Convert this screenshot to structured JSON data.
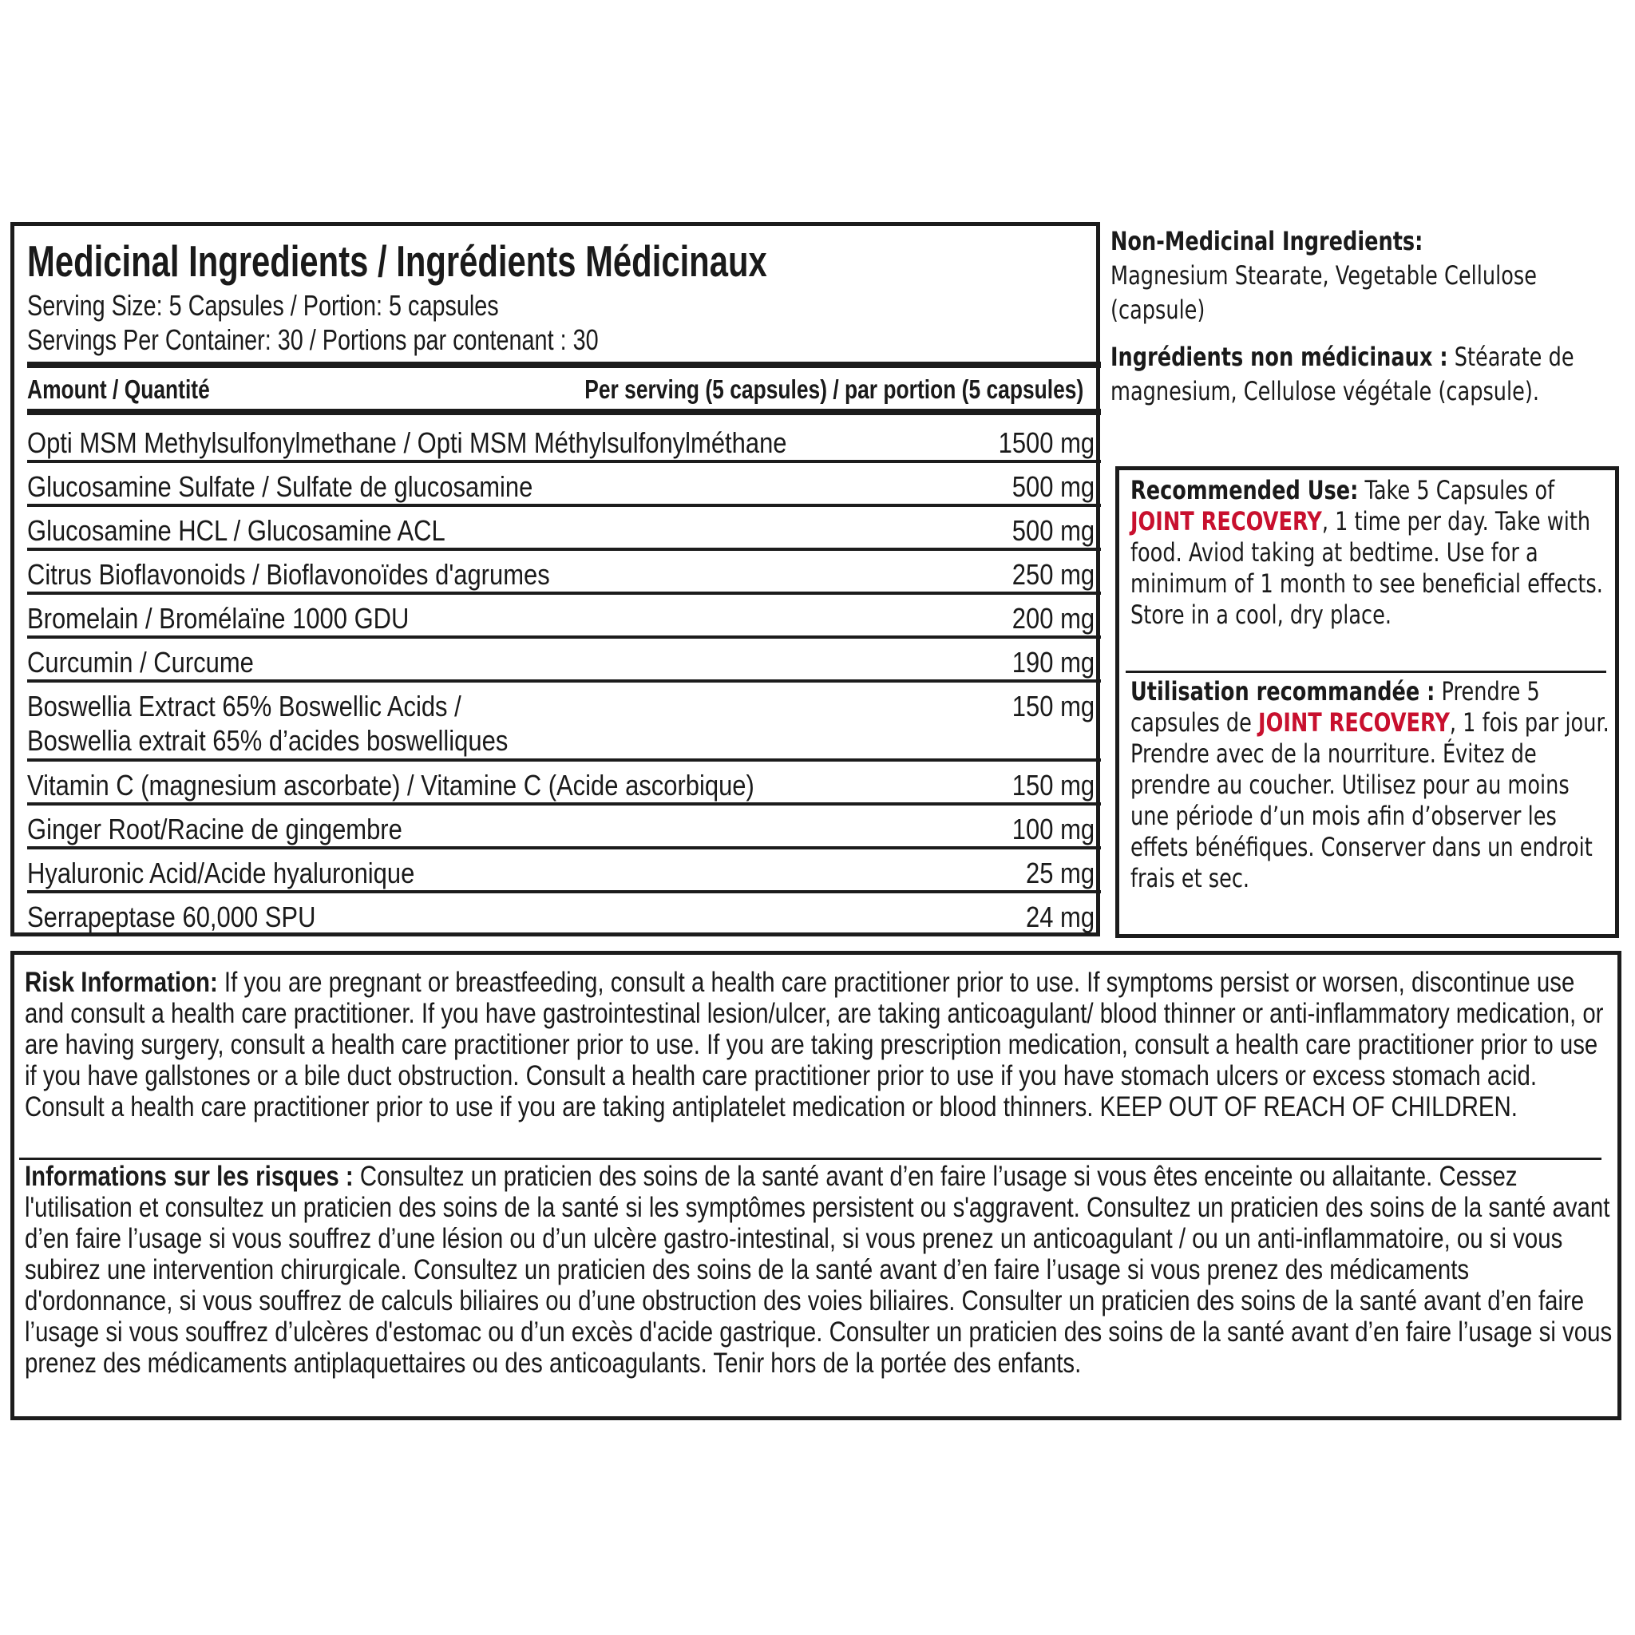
{
  "medicinal": {
    "title": "Medicinal Ingredients / Ingrédients Médicinaux",
    "serving_size": "Serving Size: 5 Capsules / Portion: 5 capsules",
    "servings_per_container": "Servings Per Container: 30 / Portions par contenant : 30",
    "header_left": "Amount / Quantité",
    "header_right": "Per serving (5 capsules) / par portion (5 capsules)",
    "rows": [
      {
        "name": "Opti MSM Methylsulfonylmethane / Opti MSM Méthylsulfonylméthane",
        "amount": "1500 mg"
      },
      {
        "name": "Glucosamine Sulfate / Sulfate de glucosamine",
        "amount": "500 mg"
      },
      {
        "name": "Glucosamine HCL / Glucosamine ACL",
        "amount": "500 mg"
      },
      {
        "name": "Citrus Bioflavonoids / Bioflavonoïdes d'agrumes",
        "amount": "250 mg"
      },
      {
        "name": "Bromelain / Bromélaïne 1000 GDU",
        "amount": "200 mg"
      },
      {
        "name": "Curcumin / Curcume",
        "amount": "190 mg"
      },
      {
        "name": "Boswellia Extract 65% Boswellic Acids /",
        "name2": "Boswellia extrait 65% d’acides boswelliques",
        "amount": "150 mg"
      },
      {
        "name": "Vitamin C (magnesium ascorbate) / Vitamine C (Acide ascorbique)",
        "amount": "150 mg"
      },
      {
        "name": "Ginger Root/Racine de gingembre",
        "amount": "100 mg"
      },
      {
        "name": "Hyaluronic Acid/Acide hyaluronique",
        "amount": "25 mg"
      },
      {
        "name": "Serrapeptase 60,000 SPU",
        "amount": "24 mg"
      }
    ]
  },
  "non_medicinal": {
    "en_heading": "Non-Medicinal Ingredients:",
    "en_text": "Magnesium Stearate, Vegetable Cellulose (capsule)",
    "fr_heading": "Ingrédients non médicinaux :",
    "fr_text": " Stéarate de magnesium, Cellulose végétale (capsule)."
  },
  "recommended_use": {
    "en_heading": "Recommended Use:",
    "en_pre": " Take 5 Capsules of ",
    "brand": "JOINT RECOVERY",
    "en_post": ", 1 time per day. Take with food. Aviod taking at bedtime. Use for a minimum of 1 month to see beneficial effects. Store in a cool, dry place.",
    "fr_heading": "Utilisation recommandée :",
    "fr_pre": " Prendre 5 capsules de ",
    "fr_post": ", 1 fois par jour. Prendre avec de la nourriture. Évitez de prendre au coucher. Utilisez pour au moins une période d’un mois afin d’observer les effets bénéfiques. Conserver dans un endroit frais et sec."
  },
  "risk": {
    "en_heading": "Risk Information:",
    "en_text": " If you are pregnant or breastfeeding, consult a health care practitioner prior to use. If symptoms persist or worsen, discontinue use and consult a health care practitioner. If you have gastrointestinal lesion/ulcer, are taking anticoagulant/ blood thinner or anti-inflammatory medication, or are having surgery, consult a health care practitioner prior to use. If you are taking prescription medication, consult a health care practitioner prior to use if you have gallstones or a bile duct obstruction. Consult a health care practitioner prior to use if you have stomach ulcers or excess stomach acid. Consult a health care practitioner prior to use if you are taking antiplatelet medication or blood thinners. KEEP OUT OF REACH OF CHILDREN.",
    "fr_heading": "Informations sur les risques :",
    "fr_text": " Consultez un praticien des soins de la santé avant d’en faire l’usage si vous êtes enceinte ou allaitante. Cessez l'utilisation et consultez un praticien des soins de la santé si les symptômes persistent ou s'aggravent. Consultez un praticien des soins de la santé avant d’en faire l’usage si vous souffrez d’une lésion ou d’un ulcère gastro-intestinal, si vous prenez un anticoagulant / ou un anti-inflammatoire, ou si vous subirez une intervention chirurgicale. Consultez un praticien des soins de la santé avant d’en faire l’usage si vous prenez des médicaments d'ordonnance, si vous souffrez de calculs biliaires ou d’une obstruction des voies biliaires. Consulter un praticien des soins de la santé avant d’en faire l’usage si vous souffrez d’ulcères d'estomac ou d’un excès d'acide gastrique. Consulter un praticien des soins de la santé avant d’en faire l’usage si vous prenez des médicaments antiplaquettaires ou des anticoagulants. Tenir hors de la portée des enfants."
  },
  "colors": {
    "brand_red": "#c8102e",
    "ink": "#1a1a1a"
  }
}
